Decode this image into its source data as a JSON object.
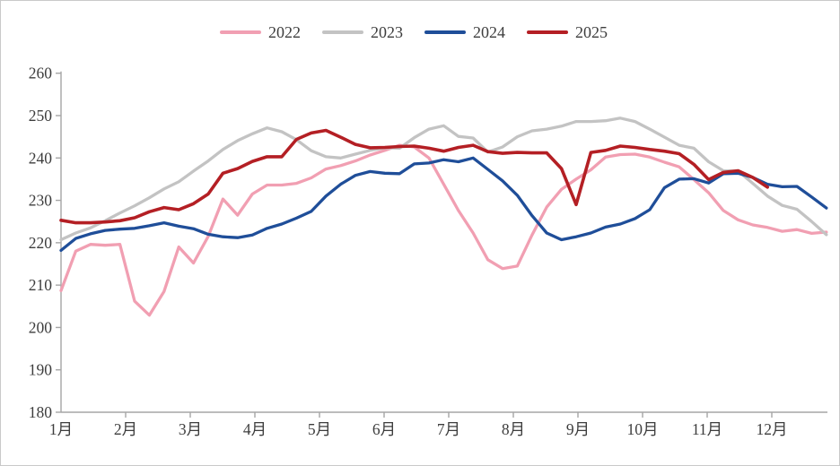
{
  "chart_data": {
    "type": "line",
    "title": "",
    "xlabel": "",
    "ylabel": "",
    "x_tick_labels": [
      "1月",
      "2月",
      "3月",
      "4月",
      "5月",
      "6月",
      "7月",
      "8月",
      "9月",
      "10月",
      "11月",
      "12月"
    ],
    "y_ticks": [
      180,
      190,
      200,
      210,
      220,
      230,
      240,
      250,
      260
    ],
    "ylim": [
      180,
      260
    ],
    "x_unit": "week (weekly points, months Jan–Dec)",
    "grid": false,
    "legend_position": "top",
    "series": [
      {
        "name": "2022",
        "color": "#F19FB2",
        "values": [
          208.7,
          218.0,
          219.6,
          219.4,
          219.6,
          206.2,
          202.9,
          208.5,
          219.0,
          215.2,
          221.5,
          230.3,
          226.5,
          231.5,
          233.6,
          233.6,
          234.0,
          235.3,
          237.4,
          238.2,
          239.3,
          240.7,
          241.8,
          243.0,
          242.6,
          240.0,
          233.8,
          227.6,
          222.3,
          216.0,
          213.9,
          214.5,
          221.8,
          228.4,
          232.6,
          235.0,
          237.2,
          240.2,
          240.8,
          240.9,
          240.2,
          239.0,
          237.9,
          234.9,
          231.8,
          227.6,
          225.4,
          224.2,
          223.6,
          222.7,
          223.1,
          222.2,
          222.5
        ]
      },
      {
        "name": "2023",
        "color": "#C3C3C3",
        "values": [
          220.7,
          222.3,
          223.5,
          225.2,
          227.0,
          228.7,
          230.6,
          232.7,
          234.4,
          236.9,
          239.3,
          242.0,
          244.1,
          245.7,
          247.1,
          246.2,
          244.3,
          241.7,
          240.3,
          240.0,
          240.9,
          241.8,
          242.4,
          242.3,
          244.8,
          246.8,
          247.6,
          245.1,
          244.7,
          241.4,
          242.6,
          245.0,
          246.4,
          246.8,
          247.5,
          248.6,
          248.6,
          248.8,
          249.4,
          248.6,
          246.8,
          244.9,
          243.0,
          242.3,
          239.1,
          237.0,
          236.9,
          234.0,
          231.0,
          228.8,
          227.9,
          225.0,
          221.9
        ]
      },
      {
        "name": "2024",
        "color": "#1F4E99",
        "values": [
          218.2,
          221.0,
          222.1,
          222.9,
          223.2,
          223.4,
          224.0,
          224.7,
          223.9,
          223.3,
          222.0,
          221.4,
          221.2,
          221.8,
          223.4,
          224.4,
          225.8,
          227.4,
          231.0,
          233.8,
          235.9,
          236.8,
          236.4,
          236.3,
          238.6,
          238.8,
          239.6,
          239.1,
          240.0,
          237.3,
          234.6,
          231.2,
          226.4,
          222.3,
          220.7,
          221.4,
          222.3,
          223.7,
          224.4,
          225.7,
          227.8,
          233.0,
          235.0,
          235.1,
          234.1,
          236.3,
          236.4,
          235.4,
          233.8,
          233.2,
          233.3,
          230.8,
          228.2
        ]
      },
      {
        "name": "2025",
        "color": "#B41F24",
        "values": [
          225.3,
          224.7,
          224.7,
          224.9,
          225.2,
          225.9,
          227.3,
          228.3,
          227.8,
          229.2,
          231.5,
          236.4,
          237.5,
          239.2,
          240.3,
          240.3,
          244.4,
          245.9,
          246.5,
          244.9,
          243.2,
          242.4,
          242.5,
          242.7,
          242.8,
          242.3,
          241.6,
          242.5,
          243.0,
          241.5,
          241.1,
          241.3,
          241.2,
          241.2,
          237.5,
          229.0,
          241.3,
          241.8,
          242.8,
          242.5,
          242.0,
          241.6,
          241.0,
          238.5,
          234.9,
          236.6,
          237.0,
          235.4,
          233.1
        ]
      }
    ]
  },
  "colors": {
    "background": "#FFFFFF",
    "border": "#C9C9C9",
    "axis": "#A6A6A6",
    "tick_text": "#3D3D3D"
  }
}
